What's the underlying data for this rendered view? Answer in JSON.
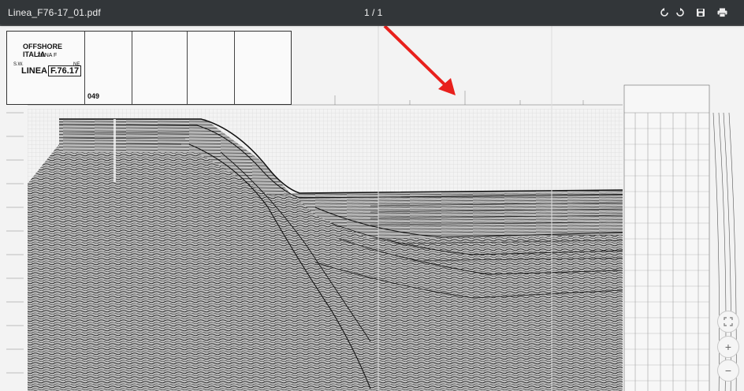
{
  "toolbar": {
    "title": "Linea_F76-17_01.pdf",
    "page_count": "1 / 1",
    "icons": [
      "rotate-ccw-icon",
      "rotate-cw-icon",
      "save-icon",
      "print-icon"
    ]
  },
  "title_block": {
    "org": "OFFSHORE ITALIA",
    "zone": "ZONA F",
    "line_label": "LINEA",
    "line_id": "F.76.17",
    "side_code": "S.W.",
    "box_code": "NE",
    "number": "049"
  },
  "annotation": {
    "arrow_color": "#e8201c"
  },
  "zoom": {
    "fit_icon": "fit-page-icon",
    "zoom_in_label": "+",
    "zoom_out_label": "−"
  },
  "colors": {
    "toolbar_bg": "#323639",
    "viewer_bg": "#525659"
  }
}
